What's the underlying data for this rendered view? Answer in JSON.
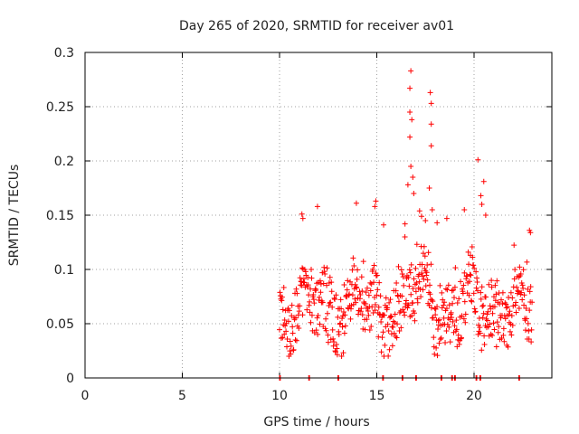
{
  "chart_data": {
    "type": "scatter",
    "title": "Day 265 of 2020, SRMTID for receiver av01",
    "xlabel": "GPS time / hours",
    "ylabel": "SRMTID / TECUs",
    "xlim": [
      0,
      24
    ],
    "ylim": [
      0,
      0.3
    ],
    "x_ticks": [
      0,
      5,
      10,
      15,
      20
    ],
    "x_tick_labels": [
      "0",
      "5",
      "10",
      "15",
      "20"
    ],
    "y_ticks": [
      0,
      0.05,
      0.1,
      0.15,
      0.2,
      0.25,
      0.3
    ],
    "y_tick_labels": [
      "0",
      "0.05",
      "0.1",
      "0.15",
      "0.2",
      "0.25",
      "0.3"
    ],
    "grid": true,
    "marker": "+",
    "color": "#ff0000",
    "zero_value_times": [
      10.0,
      11.5,
      13.0,
      15.3,
      16.3,
      17.0,
      18.3,
      18.85,
      19.0,
      20.1,
      20.3,
      22.3
    ],
    "peak_points": [
      {
        "x": 16.75,
        "y": 0.283
      },
      {
        "x": 16.7,
        "y": 0.267
      },
      {
        "x": 17.75,
        "y": 0.263
      },
      {
        "x": 17.8,
        "y": 0.253
      },
      {
        "x": 16.7,
        "y": 0.245
      },
      {
        "x": 16.8,
        "y": 0.238
      },
      {
        "x": 17.8,
        "y": 0.234
      },
      {
        "x": 16.7,
        "y": 0.222
      },
      {
        "x": 17.8,
        "y": 0.214
      },
      {
        "x": 20.2,
        "y": 0.201
      },
      {
        "x": 16.75,
        "y": 0.195
      },
      {
        "x": 16.85,
        "y": 0.185
      },
      {
        "x": 20.5,
        "y": 0.181
      },
      {
        "x": 16.6,
        "y": 0.178
      },
      {
        "x": 17.7,
        "y": 0.175
      },
      {
        "x": 16.9,
        "y": 0.17
      },
      {
        "x": 20.35,
        "y": 0.168
      },
      {
        "x": 14.95,
        "y": 0.163
      },
      {
        "x": 13.95,
        "y": 0.161
      },
      {
        "x": 20.4,
        "y": 0.16
      },
      {
        "x": 11.95,
        "y": 0.158
      },
      {
        "x": 14.9,
        "y": 0.158
      },
      {
        "x": 17.85,
        "y": 0.155
      },
      {
        "x": 19.5,
        "y": 0.155
      },
      {
        "x": 17.2,
        "y": 0.154
      },
      {
        "x": 11.15,
        "y": 0.151
      },
      {
        "x": 20.6,
        "y": 0.15
      },
      {
        "x": 17.3,
        "y": 0.149
      },
      {
        "x": 11.2,
        "y": 0.147
      },
      {
        "x": 18.6,
        "y": 0.147
      },
      {
        "x": 17.5,
        "y": 0.145
      },
      {
        "x": 16.45,
        "y": 0.142
      },
      {
        "x": 18.1,
        "y": 0.143
      },
      {
        "x": 15.35,
        "y": 0.141
      },
      {
        "x": 22.85,
        "y": 0.136
      },
      {
        "x": 22.9,
        "y": 0.134
      }
    ],
    "dense_band": {
      "x_start": 10.0,
      "x_end": 23.0,
      "y_min": 0.02,
      "y_max": 0.11,
      "typical": 0.065
    }
  }
}
